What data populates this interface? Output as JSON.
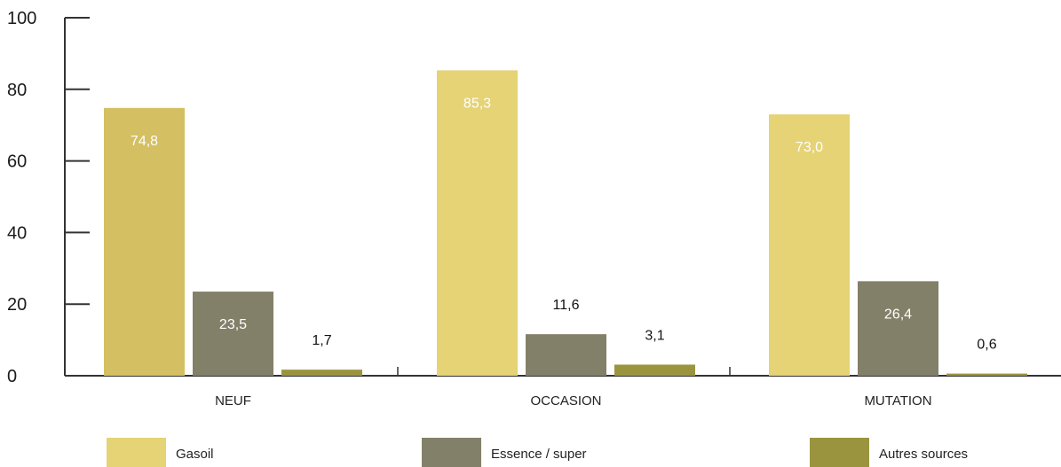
{
  "chart_data": {
    "type": "bar",
    "categories": [
      "NEUF",
      "OCCASION",
      "MUTATION"
    ],
    "series": [
      {
        "name": "Gasoil",
        "values": [
          74.8,
          85.3,
          73.0
        ],
        "labels": [
          "74,8",
          "85,3",
          "73,0"
        ],
        "color": "#e5d375",
        "label_color": "#ffffff"
      },
      {
        "name": "Essence / super",
        "values": [
          23.5,
          11.6,
          26.4
        ],
        "labels": [
          "23,5",
          "11,6",
          "26,4"
        ],
        "color": "#838069",
        "label_color": "#ffffff"
      },
      {
        "name": "Autres sources",
        "values": [
          1.7,
          3.1,
          0.6
        ],
        "labels": [
          "1,7",
          "3,1",
          "0,6"
        ],
        "color": "#9b943f",
        "label_color": "#111111"
      }
    ],
    "yticks": [
      0,
      20,
      40,
      60,
      80,
      100
    ],
    "ylim": [
      0,
      100
    ],
    "grid": false,
    "legend": "bottom",
    "colors": {
      "neuf_gasoil": "#d4bf62",
      "axis": "#333333"
    }
  }
}
